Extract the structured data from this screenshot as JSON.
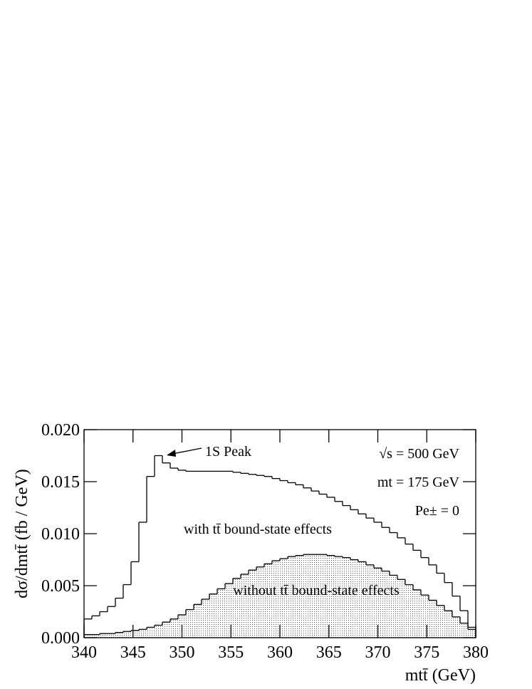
{
  "chart_data": {
    "type": "histogram",
    "y_label": "dσ/dmtt̄ (fb / GeV)",
    "x_label": "mtt̄ (GeV)",
    "annotations": [
      "1S Peak",
      "√s = 500 GeV",
      "mt = 175 GeV",
      "Pe± = 0",
      "with tt̄ bound-state effects",
      "without tt̄ bound-state effects"
    ],
    "xlim": [
      340,
      380
    ],
    "ylim": [
      0,
      0.02
    ],
    "xticks": [
      340,
      345,
      350,
      355,
      360,
      365,
      370,
      375,
      380
    ],
    "yticks": [
      {
        "value": 0,
        "label": "0.000"
      },
      0.005,
      {
        "value": 0.01,
        "label": "0.010"
      },
      0.015,
      {
        "value": 0.02,
        "label": "0.020"
      }
    ],
    "bins": [
      340,
      340.8,
      341.6,
      342.4,
      343.2,
      344,
      344.8,
      345.6,
      346.4,
      347.2,
      348,
      348.8,
      349.6,
      350.4,
      351.2,
      352,
      352.8,
      353.6,
      354.4,
      355.2,
      356,
      356.8,
      357.6,
      358.4,
      359.2,
      360,
      360.8,
      361.6,
      362.4,
      363.2,
      364,
      364.8,
      365.6,
      366.4,
      367.2,
      368,
      368.8,
      369.6,
      370.4,
      371.2,
      372,
      372.8,
      373.6,
      374.4,
      375.2,
      376,
      376.8,
      377.6,
      378.4,
      379.2,
      380
    ],
    "series": [
      {
        "color": "#000000",
        "filled": false,
        "values": [
          0.0018,
          0.0021,
          0.0025,
          0.003,
          0.0038,
          0.0051,
          0.0073,
          0.0111,
          0.0155,
          0.0175,
          0.0168,
          0.0163,
          0.0161,
          0.016,
          0.016,
          0.016,
          0.016,
          0.016,
          0.016,
          0.0159,
          0.0158,
          0.0157,
          0.0156,
          0.0155,
          0.0153,
          0.0151,
          0.0149,
          0.0147,
          0.0144,
          0.0141,
          0.0138,
          0.0135,
          0.0131,
          0.0127,
          0.0123,
          0.0119,
          0.0115,
          0.0111,
          0.0106,
          0.0101,
          0.0096,
          0.009,
          0.0084,
          0.0077,
          0.007,
          0.0062,
          0.0053,
          0.004,
          0.0026,
          0.001
        ]
      },
      {
        "color": "#000000",
        "filled": true,
        "values": [
          0.0003,
          0.0003,
          0.0004,
          0.0004,
          0.0005,
          0.0006,
          0.0007,
          0.0008,
          0.001,
          0.0012,
          0.0015,
          0.0018,
          0.0022,
          0.0027,
          0.0032,
          0.0037,
          0.0042,
          0.0047,
          0.0052,
          0.0057,
          0.0061,
          0.0065,
          0.0068,
          0.0071,
          0.0074,
          0.0076,
          0.0078,
          0.0079,
          0.008,
          0.008,
          0.008,
          0.0079,
          0.0078,
          0.0077,
          0.0075,
          0.0073,
          0.007,
          0.0067,
          0.0064,
          0.006,
          0.0056,
          0.0051,
          0.0046,
          0.0041,
          0.0036,
          0.0031,
          0.0026,
          0.002,
          0.0014,
          0.0008
        ]
      }
    ]
  }
}
